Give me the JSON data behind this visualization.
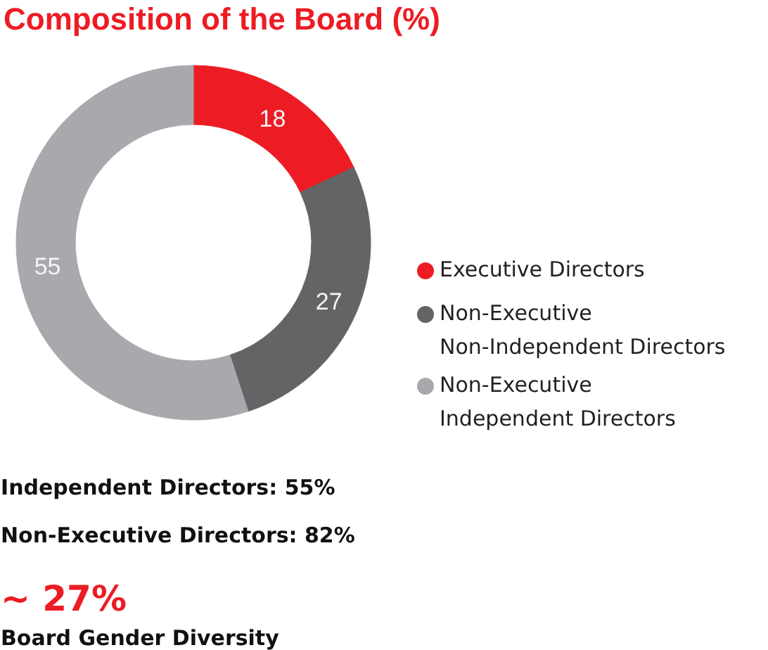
{
  "chart_data": {
    "type": "donut",
    "title": "Composition of the Board (%)",
    "categories": [
      "Executive Directors",
      "Non-Executive\nNon-Independent Directors",
      "Non-Executive\nIndependent Directors"
    ],
    "values": [
      18,
      27,
      55
    ],
    "colors": [
      "#ed1c24",
      "#636466",
      "#a7a9ac"
    ],
    "data_labels": true,
    "legend": "right",
    "annotations": [
      "Independent Directors: 55%",
      "Non-Executive Directors: 82%",
      "~ 27%",
      "Board Gender Diversity"
    ]
  }
}
